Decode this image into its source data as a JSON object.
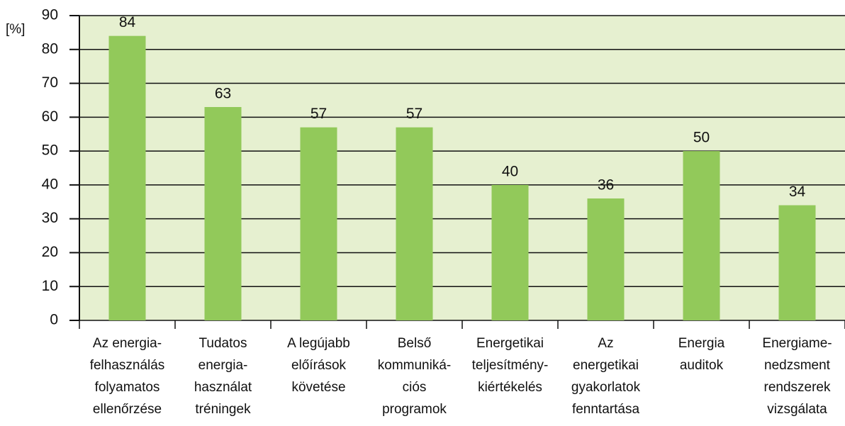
{
  "chart_data": {
    "type": "bar",
    "y_label": "[%]",
    "categories": [
      [
        "Az energia-",
        "felhasználás",
        "folyamatos",
        "ellenőrzése"
      ],
      [
        "Tudatos",
        "energia-",
        "használat",
        "tréningek"
      ],
      [
        "A legújabb",
        "előírások",
        "követése"
      ],
      [
        "Belső",
        "kommuniká-",
        "ciós",
        "programok"
      ],
      [
        "Energetikai",
        "teljesítmény-",
        "kiértékelés"
      ],
      [
        "Az",
        "energetikai",
        "gyakorlatok",
        "fenntartása"
      ],
      [
        "Energia",
        "auditok"
      ],
      [
        "Energiame-",
        "nedzsment",
        "rendszerek",
        "vizsgálata"
      ]
    ],
    "values": [
      84,
      63,
      57,
      57,
      40,
      36,
      50,
      34
    ],
    "color": "#92c95a",
    "ylim": [
      0,
      90
    ],
    "yticks": [
      0,
      10,
      20,
      30,
      40,
      50,
      60,
      70,
      80,
      90
    ],
    "grid": true
  }
}
